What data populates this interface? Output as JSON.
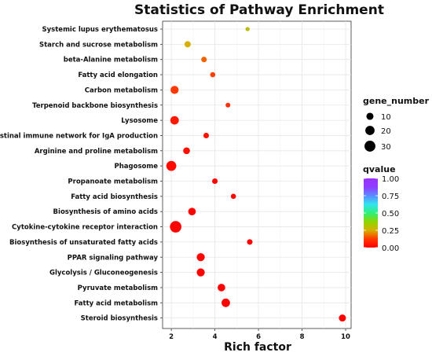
{
  "chart_data": {
    "type": "scatter",
    "title": "Statistics of Pathway Enrichment",
    "xlabel": "Rich factor",
    "ylabel": "",
    "xlim": [
      1.6,
      10.25
    ],
    "x_ticks": [
      2,
      4,
      6,
      8,
      10
    ],
    "grid": true,
    "legend_position": "right",
    "categories": [
      "Systemic lupus erythematosus",
      "Starch and sucrose metabolism",
      "beta-Alanine metabolism",
      "Fatty acid elongation",
      "Carbon metabolism",
      "Terpenoid backbone biosynthesis",
      "Lysosome",
      "Intestinal immune network for IgA production",
      "Arginine and proline metabolism",
      "Phagosome",
      "Propanoate metabolism",
      "Fatty acid biosynthesis",
      "Biosynthesis of amino acids",
      "Cytokine-cytokine receptor interaction",
      "Biosynthesis of unsaturated fatty acids",
      "PPAR signaling pathway",
      "Glycolysis / Gluconeogenesis",
      "Pyruvate metabolism",
      "Fatty acid metabolism",
      "Steroid biosynthesis"
    ],
    "points": [
      {
        "pathway": "Systemic lupus erythematosus",
        "rich_factor": 5.5,
        "gene_number": 2,
        "qvalue": 0.3
      },
      {
        "pathway": "Starch and sucrose metabolism",
        "rich_factor": 2.75,
        "gene_number": 7,
        "qvalue": 0.25
      },
      {
        "pathway": "beta-Alanine metabolism",
        "rich_factor": 3.5,
        "gene_number": 5,
        "qvalue": 0.17
      },
      {
        "pathway": "Fatty acid elongation",
        "rich_factor": 3.9,
        "gene_number": 4,
        "qvalue": 0.13
      },
      {
        "pathway": "Carbon metabolism",
        "rich_factor": 2.15,
        "gene_number": 14,
        "qvalue": 0.12
      },
      {
        "pathway": "Terpenoid backbone biosynthesis",
        "rich_factor": 4.6,
        "gene_number": 3,
        "qvalue": 0.1
      },
      {
        "pathway": "Lysosome",
        "rich_factor": 2.15,
        "gene_number": 16,
        "qvalue": 0.05
      },
      {
        "pathway": "Intestinal immune network for IgA production",
        "rich_factor": 3.6,
        "gene_number": 5,
        "qvalue": 0.04
      },
      {
        "pathway": "Arginine and proline metabolism",
        "rich_factor": 2.7,
        "gene_number": 9,
        "qvalue": 0.03
      },
      {
        "pathway": "Phagosome",
        "rich_factor": 2.0,
        "gene_number": 24,
        "qvalue": 0.02
      },
      {
        "pathway": "Propanoate metabolism",
        "rich_factor": 4.0,
        "gene_number": 5,
        "qvalue": 0.01
      },
      {
        "pathway": "Fatty acid biosynthesis",
        "rich_factor": 4.85,
        "gene_number": 4,
        "qvalue": 0.01
      },
      {
        "pathway": "Biosynthesis of amino acids",
        "rich_factor": 2.95,
        "gene_number": 12,
        "qvalue": 0.005
      },
      {
        "pathway": "Cytokine-cytokine receptor interaction",
        "rich_factor": 2.2,
        "gene_number": 34,
        "qvalue": 0.003
      },
      {
        "pathway": "Biosynthesis of unsaturated fatty acids",
        "rich_factor": 5.6,
        "gene_number": 5,
        "qvalue": 0.005
      },
      {
        "pathway": "PPAR signaling pathway",
        "rich_factor": 3.35,
        "gene_number": 14,
        "qvalue": 0.004
      },
      {
        "pathway": "Glycolysis / Gluconeogenesis",
        "rich_factor": 3.35,
        "gene_number": 14,
        "qvalue": 0.004
      },
      {
        "pathway": "Pyruvate metabolism",
        "rich_factor": 4.3,
        "gene_number": 12,
        "qvalue": 0.003
      },
      {
        "pathway": "Fatty acid metabolism",
        "rich_factor": 4.5,
        "gene_number": 16,
        "qvalue": 0.002
      },
      {
        "pathway": "Steroid biosynthesis",
        "rich_factor": 9.85,
        "gene_number": 10,
        "qvalue": 0.001
      }
    ],
    "size_legend": {
      "title": "gene_number",
      "items": [
        {
          "label": "10",
          "value": 10
        },
        {
          "label": "20",
          "value": 20
        },
        {
          "label": "30",
          "value": 30
        }
      ]
    },
    "color_legend": {
      "title": "qvalue",
      "range": [
        0,
        1
      ],
      "ticks": [
        "1.00",
        "0.75",
        "0.50",
        "0.25",
        "0.00"
      ],
      "tick_values": [
        1.0,
        0.75,
        0.5,
        0.25,
        0.0
      ],
      "gradient_colors": [
        "#ff0000",
        "#ff3a00",
        "#d6b000",
        "#8ed600",
        "#2ef07a",
        "#33e4f0",
        "#5a8cff",
        "#8f3cff",
        "#9b30ff"
      ]
    }
  }
}
